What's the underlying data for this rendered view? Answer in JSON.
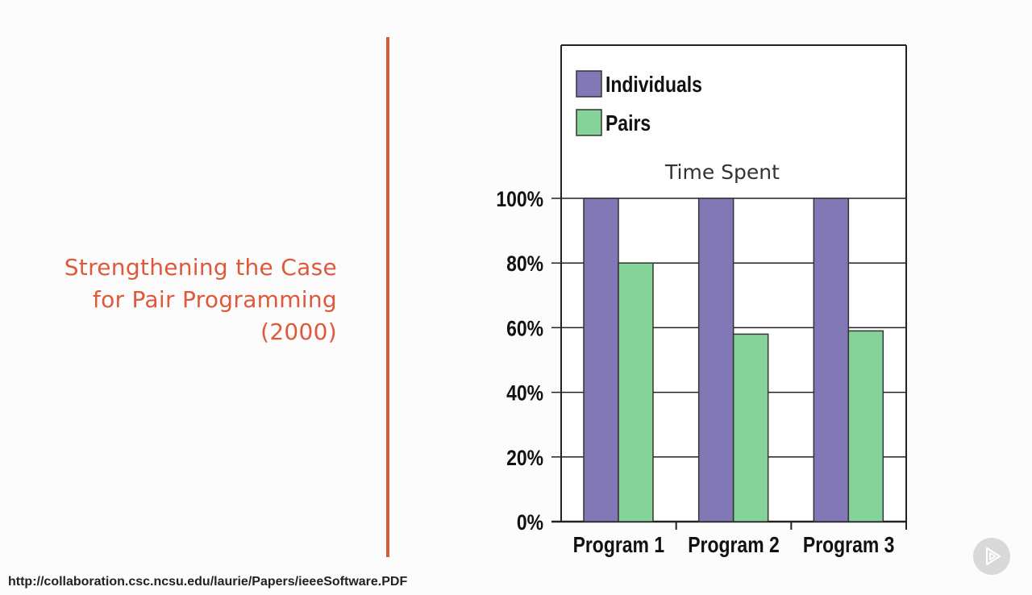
{
  "slide": {
    "title": "Strengthening the Case for Pair Programming (2000)",
    "source_url": "http://collaboration.csc.ncsu.edu/laurie/Papers/ieeeSoftware.PDF"
  },
  "player": {
    "icon": "play-icon"
  },
  "chart_data": {
    "type": "bar",
    "title": "Time Spent",
    "categories": [
      "Program 1",
      "Program 2",
      "Program 3"
    ],
    "series": [
      {
        "name": "Individuals",
        "values": [
          100,
          100,
          100
        ],
        "color": "#8278b6"
      },
      {
        "name": "Pairs",
        "values": [
          80,
          58,
          59
        ],
        "color": "#86d39a"
      }
    ],
    "ylim": [
      0,
      100
    ],
    "yticks": [
      "0%",
      "20%",
      "40%",
      "60%",
      "80%",
      "100%"
    ],
    "grid": true,
    "legend": "top-left"
  }
}
